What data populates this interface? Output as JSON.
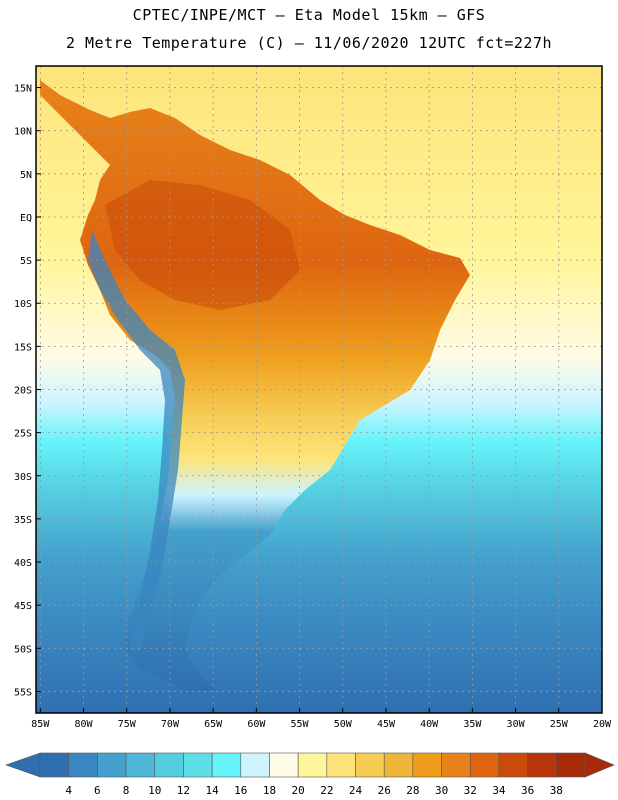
{
  "header": {
    "line1": "CPTEC/INPE/MCT –  Eta Model 15km – GFS",
    "line2": "2 Metre Temperature (C) – 11/06/2020 12UTC fct=227h"
  },
  "map": {
    "lat_ticks": [
      "15N",
      "10N",
      "5N",
      "EQ",
      "5S",
      "10S",
      "15S",
      "20S",
      "25S",
      "30S",
      "35S",
      "40S",
      "45S",
      "50S",
      "55S"
    ],
    "lon_ticks": [
      "85W",
      "80W",
      "75W",
      "70W",
      "65W",
      "60W",
      "55W",
      "50W",
      "45W",
      "40W",
      "35W",
      "30W",
      "25W",
      "20W"
    ],
    "lat_range": [
      17.5,
      -57.5
    ],
    "lon_range": [
      -85.5,
      -20
    ],
    "grid": true,
    "ocean_pattern": "temperature decreases from ~30C near 15N to ~4C near 55S",
    "land_pattern": "hot (32-38C) over northern South America, cold (4-14C) along the Andes and Patagonia"
  },
  "legend": {
    "labels": [
      "4",
      "6",
      "8",
      "10",
      "12",
      "14",
      "16",
      "18",
      "20",
      "22",
      "24",
      "26",
      "28",
      "30",
      "32",
      "34",
      "36",
      "38"
    ],
    "colors": [
      "#2f6fb0",
      "#3a86c0",
      "#44a0cc",
      "#4fb8d8",
      "#55cde0",
      "#5ddfe8",
      "#66f3fa",
      "#cdf4ff",
      "#fffbe6",
      "#fff59a",
      "#fde47a",
      "#f6cc55",
      "#efb43a",
      "#ee9d1c",
      "#e7831a",
      "#de6510",
      "#c94a0a",
      "#b8340a",
      "#a82a08"
    ]
  }
}
